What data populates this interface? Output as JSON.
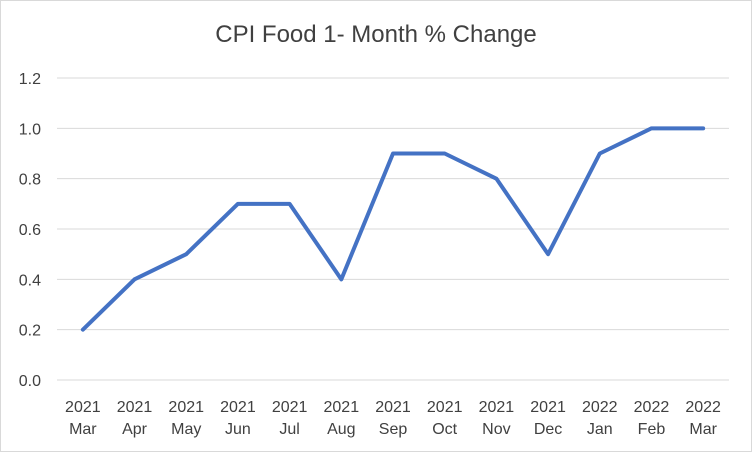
{
  "chart_data": {
    "type": "line",
    "title": "CPI Food 1- Month % Change",
    "categories": [
      [
        "2021",
        "Mar"
      ],
      [
        "2021",
        "Apr"
      ],
      [
        "2021",
        "May"
      ],
      [
        "2021",
        "Jun"
      ],
      [
        "2021",
        "Jul"
      ],
      [
        "2021",
        "Aug"
      ],
      [
        "2021",
        "Sep"
      ],
      [
        "2021",
        "Oct"
      ],
      [
        "2021",
        "Nov"
      ],
      [
        "2021",
        "Dec"
      ],
      [
        "2022",
        "Jan"
      ],
      [
        "2022",
        "Feb"
      ],
      [
        "2022",
        "Mar"
      ]
    ],
    "series": [
      {
        "values": [
          0.2,
          0.4,
          0.5,
          0.7,
          0.7,
          0.4,
          0.9,
          0.9,
          0.8,
          0.5,
          0.9,
          1.0,
          1.0
        ]
      }
    ],
    "yticks": [
      "0.0",
      "0.2",
      "0.4",
      "0.6",
      "0.8",
      "1.0",
      "1.2"
    ],
    "ylim": [
      0,
      1.2
    ],
    "grid": true,
    "legend": "none",
    "colors": {
      "line": "#4472c4",
      "grid": "#d9d9d9",
      "text": "#404040"
    }
  }
}
